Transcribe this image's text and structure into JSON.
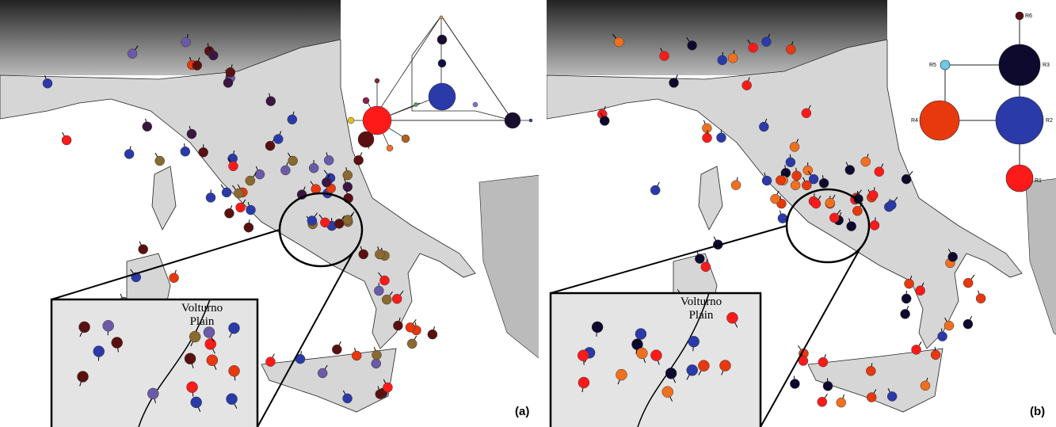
{
  "panels": [
    {
      "label": "(a)",
      "inset": {
        "lines": [
          "Volturno",
          "Plain"
        ]
      }
    },
    {
      "label": "(b)",
      "inset": {
        "lines": [
          "Volturno",
          "Plain"
        ]
      },
      "network": {
        "nodes": [
          "R1",
          "R2",
          "R3",
          "R4",
          "R5",
          "R6"
        ]
      }
    }
  ]
}
